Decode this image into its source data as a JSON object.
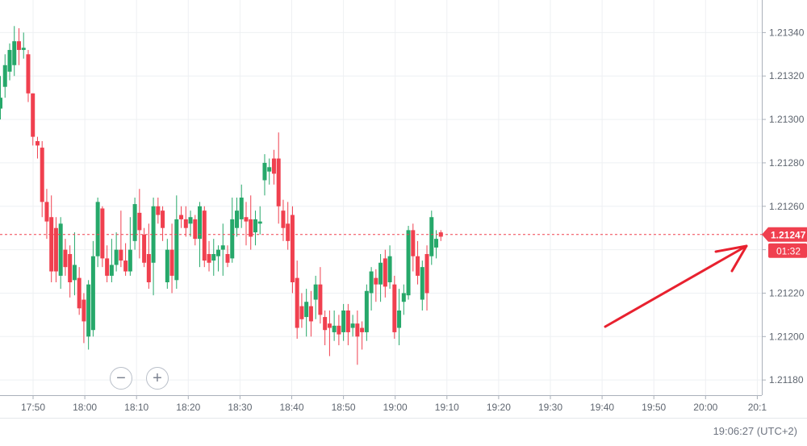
{
  "controls": {
    "zoom_out_label": "−",
    "zoom_in_label": "+"
  },
  "clock": "19:06:27 (UTC+2)",
  "chart_data": {
    "type": "candlestick",
    "title": "",
    "x_ticks": [
      "17:50",
      "18:00",
      "18:10",
      "18:20",
      "18:30",
      "18:40",
      "18:50",
      "19:00",
      "19:10",
      "19:20",
      "19:30",
      "19:40",
      "19:50",
      "20:00",
      "20:1"
    ],
    "y_ticks": [
      "1.21180",
      "1.21200",
      "1.21220",
      "1.21240",
      "1.21260",
      "1.21280",
      "1.21300",
      "1.21320",
      "1.21340"
    ],
    "y_range": [
      1.21173,
      1.21355
    ],
    "grid": true,
    "current_price": {
      "label": "1.21247",
      "value": 1.21247,
      "timer": "01:32"
    },
    "colors": {
      "up": "#26a86a",
      "down": "#f0404f",
      "grid": "#eef0f3",
      "axis": "#aab0ba",
      "text": "#5f6670"
    },
    "annotation": {
      "type": "arrow",
      "color": "#e8212f"
    },
    "candles": [
      [
        1.21305,
        1.2131,
        1.213,
        1.2132,
        "up"
      ],
      [
        1.21315,
        1.21325,
        1.2131,
        1.2133,
        "up"
      ],
      [
        1.21322,
        1.21332,
        1.21318,
        1.21335,
        "up"
      ],
      [
        1.21325,
        1.21336,
        1.2132,
        1.21343,
        "up"
      ],
      [
        1.21336,
        1.21332,
        1.21325,
        1.21342,
        "down"
      ],
      [
        1.21332,
        1.21333,
        1.21328,
        1.2134,
        "up"
      ],
      [
        1.2133,
        1.21312,
        1.21308,
        1.21332,
        "down"
      ],
      [
        1.21312,
        1.21292,
        1.21288,
        1.21312,
        "down"
      ],
      [
        1.2129,
        1.21288,
        1.21282,
        1.21292,
        "down"
      ],
      [
        1.21287,
        1.21262,
        1.21255,
        1.2129,
        "down"
      ],
      [
        1.21262,
        1.21253,
        1.21245,
        1.21268,
        "down"
      ],
      [
        1.21255,
        1.2123,
        1.21225,
        1.21265,
        "down"
      ],
      [
        1.2125,
        1.2123,
        1.21225,
        1.21255,
        "down"
      ],
      [
        1.21228,
        1.21252,
        1.21222,
        1.21255,
        "up"
      ],
      [
        1.2124,
        1.21232,
        1.21228,
        1.21245,
        "down"
      ],
      [
        1.21238,
        1.21225,
        1.21218,
        1.21242,
        "down"
      ],
      [
        1.21226,
        1.21233,
        1.21219,
        1.21248,
        "up"
      ],
      [
        1.21227,
        1.21213,
        1.2121,
        1.21232,
        "down"
      ],
      [
        1.21217,
        1.21207,
        1.21197,
        1.2122,
        "down"
      ],
      [
        1.212,
        1.21224,
        1.21194,
        1.21226,
        "up"
      ],
      [
        1.21203,
        1.21237,
        1.212,
        1.21244,
        "up"
      ],
      [
        1.21237,
        1.21262,
        1.21232,
        1.21264,
        "up"
      ],
      [
        1.21259,
        1.21236,
        1.21232,
        1.2126,
        "down"
      ],
      [
        1.21236,
        1.21228,
        1.21225,
        1.21242,
        "down"
      ],
      [
        1.21228,
        1.21233,
        1.21225,
        1.21245,
        "up"
      ],
      [
        1.21233,
        1.2124,
        1.2123,
        1.21248,
        "up"
      ],
      [
        1.2124,
        1.21235,
        1.21232,
        1.21258,
        "down"
      ],
      [
        1.21235,
        1.2123,
        1.21228,
        1.21243,
        "down"
      ],
      [
        1.2123,
        1.2124,
        1.21228,
        1.21255,
        "up"
      ],
      [
        1.21244,
        1.21261,
        1.2124,
        1.21264,
        "up"
      ],
      [
        1.21257,
        1.21249,
        1.21236,
        1.21268,
        "down"
      ],
      [
        1.21247,
        1.21234,
        1.21232,
        1.2125,
        "down"
      ],
      [
        1.21238,
        1.21225,
        1.21222,
        1.21252,
        "down"
      ],
      [
        1.21234,
        1.2126,
        1.21219,
        1.21264,
        "up"
      ],
      [
        1.2126,
        1.21256,
        1.21252,
        1.21264,
        "down"
      ],
      [
        1.21258,
        1.2125,
        1.21244,
        1.2126,
        "down"
      ],
      [
        1.21225,
        1.2124,
        1.21222,
        1.21245,
        "up"
      ],
      [
        1.2124,
        1.21228,
        1.2122,
        1.21252,
        "down"
      ],
      [
        1.21226,
        1.21254,
        1.21222,
        1.21265,
        "up"
      ],
      [
        1.21256,
        1.21254,
        1.2125,
        1.2126,
        "down"
      ],
      [
        1.21254,
        1.2125,
        1.21246,
        1.2126,
        "down"
      ],
      [
        1.21252,
        1.21255,
        1.21246,
        1.21258,
        "up"
      ],
      [
        1.21254,
        1.21245,
        1.21242,
        1.21256,
        "down"
      ],
      [
        1.21245,
        1.2126,
        1.21232,
        1.21262,
        "up"
      ],
      [
        1.21258,
        1.21235,
        1.21232,
        1.2126,
        "down"
      ],
      [
        1.21238,
        1.21234,
        1.2123,
        1.21244,
        "down"
      ],
      [
        1.21235,
        1.21238,
        1.21228,
        1.21245,
        "up"
      ],
      [
        1.21237,
        1.2124,
        1.2123,
        1.21242,
        "up"
      ],
      [
        1.2124,
        1.21242,
        1.21228,
        1.21252,
        "up"
      ],
      [
        1.21238,
        1.21234,
        1.21232,
        1.21242,
        "down"
      ],
      [
        1.21236,
        1.21254,
        1.21234,
        1.21264,
        "up"
      ],
      [
        1.2125,
        1.21258,
        1.21246,
        1.21264,
        "up"
      ],
      [
        1.21254,
        1.21264,
        1.2125,
        1.2127,
        "up"
      ],
      [
        1.21255,
        1.21253,
        1.21242,
        1.21262,
        "down"
      ],
      [
        1.21254,
        1.21246,
        1.2124,
        1.21265,
        "down"
      ],
      [
        1.21248,
        1.21254,
        1.21242,
        1.21258,
        "up"
      ],
      [
        1.21252,
        1.21253,
        1.21247,
        1.2126,
        "up"
      ],
      [
        1.21272,
        1.2128,
        1.21265,
        1.21284,
        "up"
      ],
      [
        1.21276,
        1.21278,
        1.2127,
        1.21282,
        "up"
      ],
      [
        1.21282,
        1.21275,
        1.2127,
        1.21286,
        "down"
      ],
      [
        1.21282,
        1.2126,
        1.21252,
        1.21294,
        "down"
      ],
      [
        1.21258,
        1.2125,
        1.21244,
        1.21263,
        "down"
      ],
      [
        1.21252,
        1.21244,
        1.2124,
        1.21262,
        "down"
      ],
      [
        1.21256,
        1.21225,
        1.2122,
        1.2126,
        "down"
      ],
      [
        1.21227,
        1.21204,
        1.21199,
        1.21235,
        "down"
      ],
      [
        1.21214,
        1.21208,
        1.21204,
        1.2122,
        "down"
      ],
      [
        1.21209,
        1.21216,
        1.212,
        1.21222,
        "up"
      ],
      [
        1.21214,
        1.21207,
        1.212,
        1.21221,
        "down"
      ],
      [
        1.21217,
        1.21224,
        1.21208,
        1.21228,
        "up"
      ],
      [
        1.21224,
        1.2121,
        1.21206,
        1.21232,
        "down"
      ],
      [
        1.21209,
        1.21203,
        1.21196,
        1.21212,
        "down"
      ],
      [
        1.21206,
        1.21204,
        1.21191,
        1.21212,
        "down"
      ],
      [
        1.21202,
        1.21205,
        1.21198,
        1.21212,
        "up"
      ],
      [
        1.21205,
        1.21201,
        1.21196,
        1.2121,
        "down"
      ],
      [
        1.21202,
        1.21212,
        1.21198,
        1.21215,
        "up"
      ],
      [
        1.21212,
        1.21202,
        1.21196,
        1.21215,
        "down"
      ],
      [
        1.21204,
        1.21206,
        1.212,
        1.2121,
        "up"
      ],
      [
        1.21206,
        1.212,
        1.21187,
        1.21212,
        "down"
      ],
      [
        1.21204,
        1.21202,
        1.21194,
        1.21207,
        "down"
      ],
      [
        1.21202,
        1.21221,
        1.21198,
        1.21224,
        "up"
      ],
      [
        1.2122,
        1.2123,
        1.21212,
        1.21232,
        "up"
      ],
      [
        1.21227,
        1.21224,
        1.21216,
        1.21231,
        "down"
      ],
      [
        1.21224,
        1.21234,
        1.21216,
        1.21238,
        "up"
      ],
      [
        1.21236,
        1.21223,
        1.21218,
        1.2124,
        "down"
      ],
      [
        1.21225,
        1.21237,
        1.21222,
        1.21242,
        "up"
      ],
      [
        1.21224,
        1.21202,
        1.21199,
        1.21228,
        "down"
      ],
      [
        1.21204,
        1.21212,
        1.21196,
        1.21222,
        "up"
      ],
      [
        1.21216,
        1.2122,
        1.2121,
        1.21224,
        "up"
      ],
      [
        1.21219,
        1.21249,
        1.21217,
        1.21251,
        "up"
      ],
      [
        1.21249,
        1.21237,
        1.2123,
        1.21252,
        "down"
      ],
      [
        1.21237,
        1.21228,
        1.21224,
        1.21244,
        "down"
      ],
      [
        1.21217,
        1.21232,
        1.21212,
        1.21235,
        "up"
      ],
      [
        1.21238,
        1.2122,
        1.21212,
        1.21242,
        "down"
      ],
      [
        1.21237,
        1.21255,
        1.21233,
        1.21258,
        "up"
      ],
      [
        1.21241,
        1.21245,
        1.21236,
        1.21249,
        "up"
      ],
      [
        1.21248,
        1.21246,
        1.21244,
        1.21249,
        "down"
      ]
    ]
  }
}
